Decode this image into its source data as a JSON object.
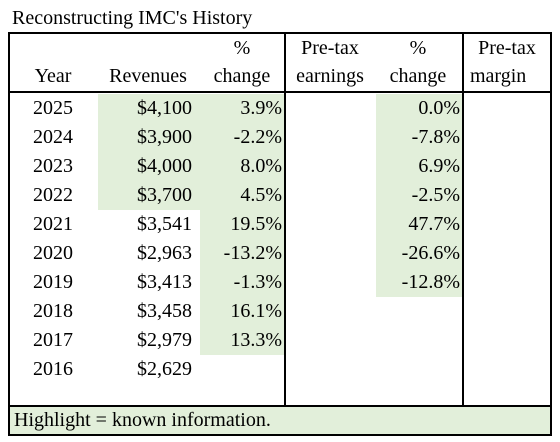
{
  "title": "Reconstructing IMC's History",
  "headers": {
    "year": "Year",
    "revenues": "Revenues",
    "rev_pct_1": "%",
    "rev_pct_2": "change",
    "pretax_1": "Pre-tax",
    "pretax_2": "earnings",
    "earn_pct_1": "%",
    "earn_pct_2": "change",
    "margin_1": "Pre-tax",
    "margin_2": "margin"
  },
  "rows": [
    {
      "year": "2025",
      "revenue": "$4,100",
      "rev_change": "3.9%",
      "pretax": "",
      "earn_change": "0.0%",
      "margin": ""
    },
    {
      "year": "2024",
      "revenue": "$3,900",
      "rev_change": "-2.2%",
      "pretax": "",
      "earn_change": "-7.8%",
      "margin": ""
    },
    {
      "year": "2023",
      "revenue": "$4,000",
      "rev_change": "8.0%",
      "pretax": "",
      "earn_change": "6.9%",
      "margin": ""
    },
    {
      "year": "2022",
      "revenue": "$3,700",
      "rev_change": "4.5%",
      "pretax": "",
      "earn_change": "-2.5%",
      "margin": ""
    },
    {
      "year": "2021",
      "revenue": "$3,541",
      "rev_change": "19.5%",
      "pretax": "",
      "earn_change": "47.7%",
      "margin": ""
    },
    {
      "year": "2020",
      "revenue": "$2,963",
      "rev_change": "-13.2%",
      "pretax": "",
      "earn_change": "-26.6%",
      "margin": ""
    },
    {
      "year": "2019",
      "revenue": "$3,413",
      "rev_change": "-1.3%",
      "pretax": "",
      "earn_change": "-12.8%",
      "margin": ""
    },
    {
      "year": "2018",
      "revenue": "$3,458",
      "rev_change": "16.1%",
      "pretax": "",
      "earn_change": "",
      "margin": ""
    },
    {
      "year": "2017",
      "revenue": "$2,979",
      "rev_change": "13.3%",
      "pretax": "",
      "earn_change": "",
      "margin": ""
    },
    {
      "year": "2016",
      "revenue": "$2,629",
      "rev_change": "",
      "pretax": "",
      "earn_change": "",
      "margin": ""
    }
  ],
  "highlight": {
    "revenue_rows": [
      0,
      1,
      2,
      3
    ],
    "rev_change_rows": [
      0,
      1,
      2,
      3,
      4,
      5,
      6,
      7,
      8
    ],
    "earn_change_rows": [
      0,
      1,
      2,
      3,
      4,
      5,
      6
    ],
    "color": "#e2efda"
  },
  "footer": "Highlight = known information."
}
